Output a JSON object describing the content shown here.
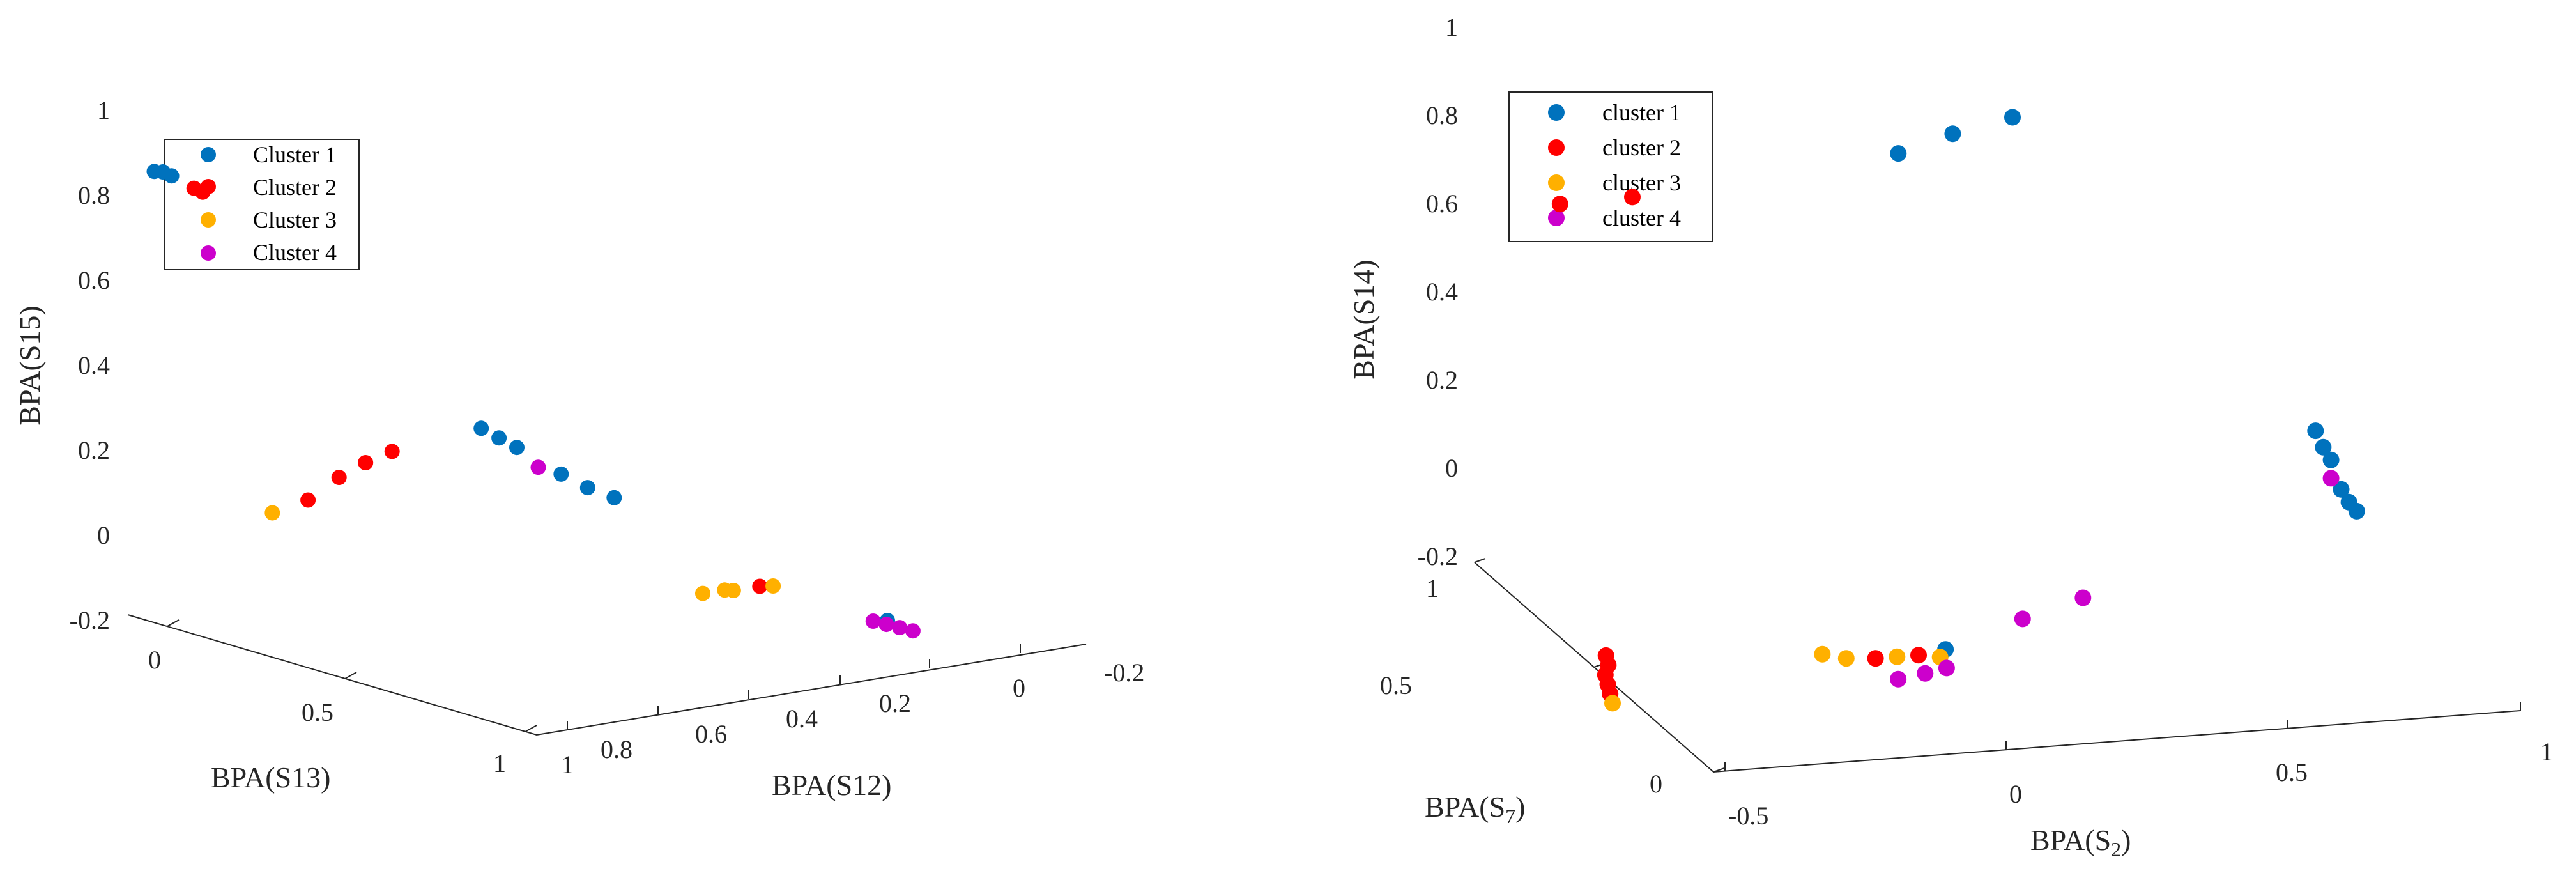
{
  "chart_data": [
    {
      "type": "scatter3d",
      "zlabel": "BPA(S15)",
      "xlabel": "BPA(S13)",
      "ylabel": "BPA(S12)",
      "z_ticks": [
        "1",
        "0.8",
        "0.6",
        "0.4",
        "0.2",
        "0",
        "-0.2"
      ],
      "x_ticks": [
        "0",
        "0.5",
        "1"
      ],
      "y_ticks": [
        "1",
        "0.8",
        "0.6",
        "0.4",
        "0.2",
        "0",
        "-0.2"
      ],
      "legend": [
        {
          "name": "Cluster 1",
          "color": "#0072BD"
        },
        {
          "name": "Cluster 2",
          "color": "#FF0000"
        },
        {
          "name": "Cluster 3",
          "color": "#FFB000"
        },
        {
          "name": "Cluster 4",
          "color": "#CC00CC"
        }
      ],
      "series": [
        {
          "name": "Cluster 1",
          "points": [
            [
              0.02,
              0.96,
              1.05
            ],
            [
              0.03,
              0.95,
              1.05
            ],
            [
              0.04,
              0.94,
              1.04
            ],
            [
              0.45,
              0.63,
              0.4
            ],
            [
              0.46,
              0.6,
              0.37
            ],
            [
              0.47,
              0.57,
              0.34
            ],
            [
              0.5,
              0.5,
              0.26
            ],
            [
              0.52,
              0.46,
              0.22
            ],
            [
              0.54,
              0.42,
              0.19
            ],
            [
              0.85,
              0.1,
              -0.12
            ]
          ]
        },
        {
          "name": "Cluster 2",
          "points": [
            [
              0.05,
              0.9,
              1.0
            ],
            [
              0.06,
              0.89,
              0.99
            ],
            [
              0.4,
              0.78,
              0.35
            ],
            [
              0.38,
              0.82,
              0.32
            ],
            [
              0.36,
              0.86,
              0.28
            ],
            [
              0.34,
              0.91,
              0.22
            ],
            [
              0.65,
              0.2,
              -0.07
            ]
          ]
        },
        {
          "name": "Cluster 3",
          "points": [
            [
              0.32,
              0.97,
              0.19
            ],
            [
              0.6,
              0.28,
              -0.09
            ],
            [
              0.62,
              0.25,
              -0.08
            ],
            [
              0.63,
              0.24,
              -0.08
            ],
            [
              0.66,
              0.18,
              -0.07
            ]
          ]
        },
        {
          "name": "Cluster 4",
          "points": [
            [
              0.5,
              0.55,
              0.29
            ],
            [
              0.86,
              0.14,
              -0.11
            ],
            [
              0.87,
              0.12,
              -0.12
            ],
            [
              0.88,
              0.1,
              -0.13
            ],
            [
              0.89,
              0.08,
              -0.14
            ]
          ]
        }
      ]
    },
    {
      "type": "scatter3d",
      "zlabel": "BPA(S14)",
      "xlabel_main": "BPA(S",
      "xlabel_sub": "2",
      "xlabel_close": ")",
      "ylabel_main": "BPA(S",
      "ylabel_sub": "7",
      "ylabel_close": ")",
      "z_ticks": [
        "1",
        "0.8",
        "0.6",
        "0.4",
        "0.2",
        "0",
        "-0.2"
      ],
      "x_ticks": [
        "-0.5",
        "0",
        "0.5",
        "1"
      ],
      "y_ticks": [
        "1",
        "0.5",
        "0"
      ],
      "legend": [
        {
          "name": "cluster 1",
          "color": "#0072BD"
        },
        {
          "name": "cluster 2",
          "color": "#FF0000"
        },
        {
          "name": "cluster 3",
          "color": "#FFB000"
        },
        {
          "name": "cluster 4",
          "color": "#CC00CC"
        }
      ],
      "series": [
        {
          "name": "cluster 1",
          "points": [
            [
              0.27,
              0.96,
              0.85
            ],
            [
              0.38,
              0.98,
              0.88
            ],
            [
              0.5,
              1.0,
              0.9
            ],
            [
              0.1,
              0.38,
              -0.15
            ],
            [
              0.93,
              0.7,
              0.17
            ],
            [
              0.94,
              0.69,
              0.13
            ],
            [
              0.95,
              0.68,
              0.1
            ],
            [
              0.96,
              0.66,
              0.03
            ],
            [
              0.97,
              0.65,
              0.0
            ],
            [
              0.98,
              0.64,
              -0.02
            ]
          ]
        },
        {
          "name": "cluster 2",
          "points": [
            [
              -0.35,
              0.98,
              0.77
            ],
            [
              -0.22,
              0.97,
              0.78
            ],
            [
              -0.5,
              0.45,
              -0.14
            ],
            [
              -0.5,
              0.44,
              -0.16
            ],
            [
              -0.51,
              0.43,
              -0.18
            ],
            [
              -0.51,
              0.42,
              -0.2
            ],
            [
              -0.51,
              0.41,
              -0.22
            ],
            [
              -0.03,
              0.38,
              -0.16
            ],
            [
              0.05,
              0.38,
              -0.16
            ]
          ]
        },
        {
          "name": "cluster 3",
          "points": [
            [
              -0.51,
              0.4,
              -0.24
            ],
            [
              -0.12,
              0.4,
              -0.15
            ],
            [
              -0.08,
              0.39,
              -0.16
            ],
            [
              0.01,
              0.38,
              -0.16
            ],
            [
              0.09,
              0.38,
              -0.17
            ]
          ]
        },
        {
          "name": "cluster 4",
          "points": [
            [
              0.95,
              0.68,
              0.05
            ],
            [
              0.27,
              0.44,
              -0.12
            ],
            [
              0.4,
              0.48,
              -0.1
            ],
            [
              -0.01,
              0.33,
              -0.19
            ],
            [
              0.04,
              0.33,
              -0.18
            ],
            [
              0.08,
              0.33,
              -0.17
            ]
          ]
        }
      ]
    }
  ]
}
